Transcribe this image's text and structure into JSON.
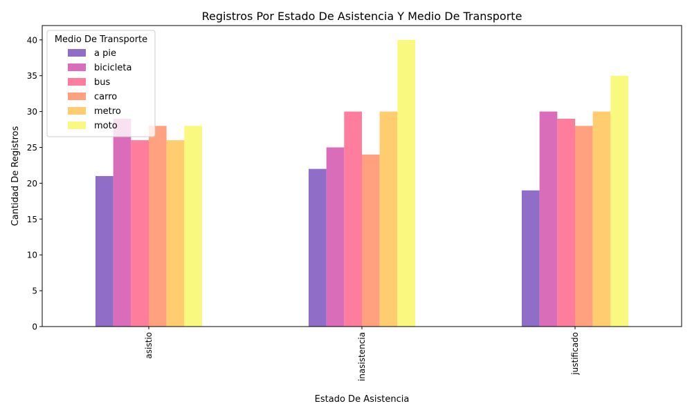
{
  "chart_data": {
    "type": "bar",
    "title": "Registros Por Estado De Asistencia Y Medio De Transporte",
    "xlabel": "Estado De Asistencia",
    "ylabel": "Cantidad De Registros",
    "categories": [
      "asistio",
      "inasistencia",
      "justificado"
    ],
    "ylim": [
      0,
      42
    ],
    "yticks": [
      0,
      5,
      10,
      15,
      20,
      25,
      30,
      35,
      40
    ],
    "grid": false,
    "legend": {
      "title": "Medio De Transporte",
      "placement": "top-left"
    },
    "series": [
      {
        "name": "a pie",
        "color": "#845ec2",
        "values": [
          21,
          22,
          19
        ]
      },
      {
        "name": "bicicleta",
        "color": "#d65db1",
        "values": [
          29,
          25,
          30
        ]
      },
      {
        "name": "bus",
        "color": "#ff6f91",
        "values": [
          26,
          30,
          29
        ]
      },
      {
        "name": "carro",
        "color": "#ff9671",
        "values": [
          28,
          24,
          28
        ]
      },
      {
        "name": "metro",
        "color": "#ffc75f",
        "values": [
          26,
          30,
          30
        ]
      },
      {
        "name": "moto",
        "color": "#f9f871",
        "values": [
          28,
          40,
          35
        ]
      }
    ]
  }
}
